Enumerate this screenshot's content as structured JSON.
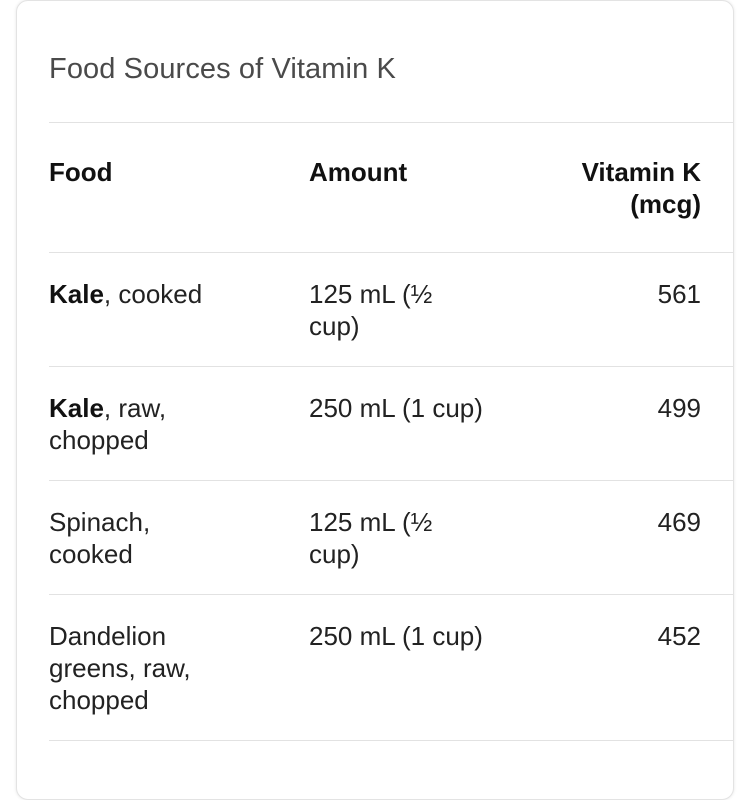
{
  "title": "Food Sources of Vitamin K",
  "columns": {
    "food": "Food",
    "amount": "Amount",
    "vitamin_k_line1": "Vitamin K",
    "vitamin_k_line2": "(mcg)"
  },
  "rows": [
    {
      "food_bold": "Kale",
      "food_rest": ", cooked",
      "amount": "125 mL (½ cup)",
      "vitamin_k": "561"
    },
    {
      "food_bold": "Kale",
      "food_rest": ", raw, chopped",
      "amount": "250 mL (1 cup)",
      "vitamin_k": "499"
    },
    {
      "food_bold": "",
      "food_rest": "Spinach, cooked",
      "amount": "125 mL (½ cup)",
      "vitamin_k": "469"
    },
    {
      "food_bold": "",
      "food_rest": "Dandelion greens, raw, chopped",
      "amount": "250 mL (1 cup)",
      "vitamin_k": "452"
    }
  ]
}
